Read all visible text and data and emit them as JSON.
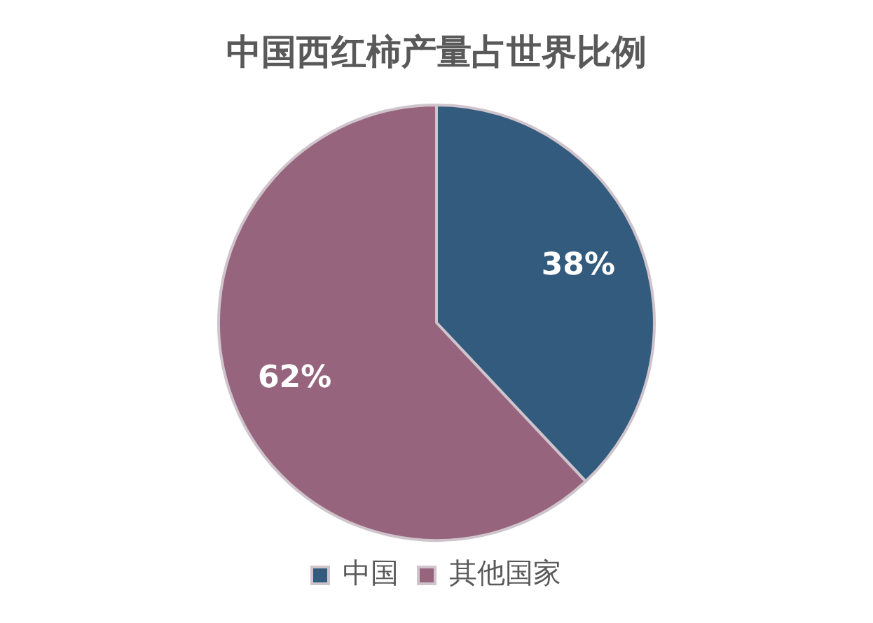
{
  "chart_data": {
    "type": "pie",
    "title": "中国西红柿产量占世界比例",
    "categories": [
      "中国",
      "其他国家"
    ],
    "values": [
      38,
      62
    ],
    "colors": [
      "#335b7e",
      "#96647d"
    ],
    "value_labels": [
      "38%",
      "62%"
    ],
    "legend": "bottom"
  }
}
